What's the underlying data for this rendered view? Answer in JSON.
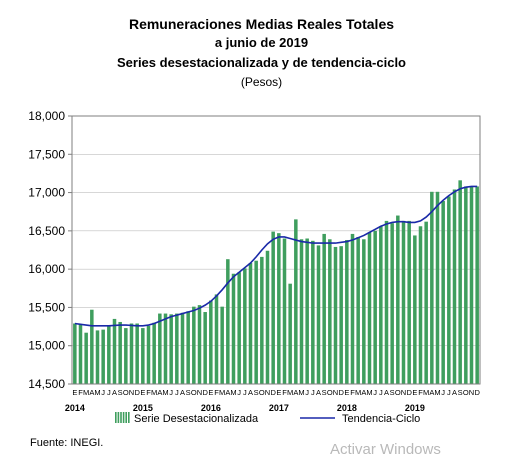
{
  "title_line1": "Remuneraciones Medias Reales Totales",
  "title_line2": "a junio de 2019",
  "title_line3": "Series desestacionalizada y de tendencia-ciclo",
  "subtitle": "(Pesos)",
  "source": "Fuente: INEGI.",
  "watermark": "Activar Windows",
  "colors": {
    "bars": "#3f9e5e",
    "trend": "#1a29a8",
    "frame": "#7f7f7f",
    "grid": "#bfbfbf"
  },
  "chart_data": {
    "type": "bar",
    "ylim": [
      14500,
      18000
    ],
    "yticks": [
      14500,
      15000,
      15500,
      16000,
      16500,
      17000,
      17500,
      18000
    ],
    "ytick_labels": [
      "14,500",
      "15,000",
      "15,500",
      "16,000",
      "16,500",
      "17,000",
      "17,500",
      "18,000"
    ],
    "month_labels": "EFMAMJJASOND",
    "years": [
      "2014",
      "2015",
      "2016",
      "2017",
      "2018",
      "2019"
    ],
    "grid": true,
    "legend_position": "bottom",
    "series": [
      {
        "name": "Serie Desestacionalizada",
        "type": "bar",
        "values": [
          15290,
          15280,
          15170,
          15470,
          15200,
          15210,
          15260,
          15350,
          15310,
          15230,
          15290,
          15290,
          15230,
          15260,
          15300,
          15420,
          15420,
          15410,
          15420,
          15430,
          15450,
          15510,
          15530,
          15440,
          15590,
          15670,
          15510,
          16130,
          15940,
          15960,
          16010,
          16080,
          16110,
          16160,
          16240,
          16490,
          16470,
          16400,
          15810,
          16650,
          16390,
          16400,
          16370,
          16310,
          16460,
          16390,
          16290,
          16300,
          16380,
          16460,
          16420,
          16390,
          16480,
          16500,
          16560,
          16630,
          16600,
          16700,
          16630,
          16630,
          16440,
          16560,
          16620,
          17010,
          17010,
          16890,
          16950,
          17040,
          17160,
          17080,
          17080,
          17080
        ]
      },
      {
        "name": "Tendencia-Ciclo",
        "type": "line",
        "values": [
          15290,
          15280,
          15270,
          15260,
          15260,
          15260,
          15260,
          15265,
          15270,
          15270,
          15265,
          15260,
          15260,
          15270,
          15290,
          15320,
          15350,
          15380,
          15400,
          15420,
          15440,
          15460,
          15490,
          15530,
          15580,
          15650,
          15730,
          15820,
          15900,
          15960,
          16020,
          16080,
          16160,
          16250,
          16330,
          16390,
          16420,
          16420,
          16400,
          16380,
          16360,
          16350,
          16340,
          16340,
          16340,
          16340,
          16340,
          16350,
          16360,
          16380,
          16410,
          16440,
          16480,
          16520,
          16560,
          16590,
          16610,
          16620,
          16620,
          16610,
          16610,
          16630,
          16680,
          16750,
          16830,
          16900,
          16960,
          17010,
          17050,
          17070,
          17080,
          17080
        ]
      }
    ]
  }
}
